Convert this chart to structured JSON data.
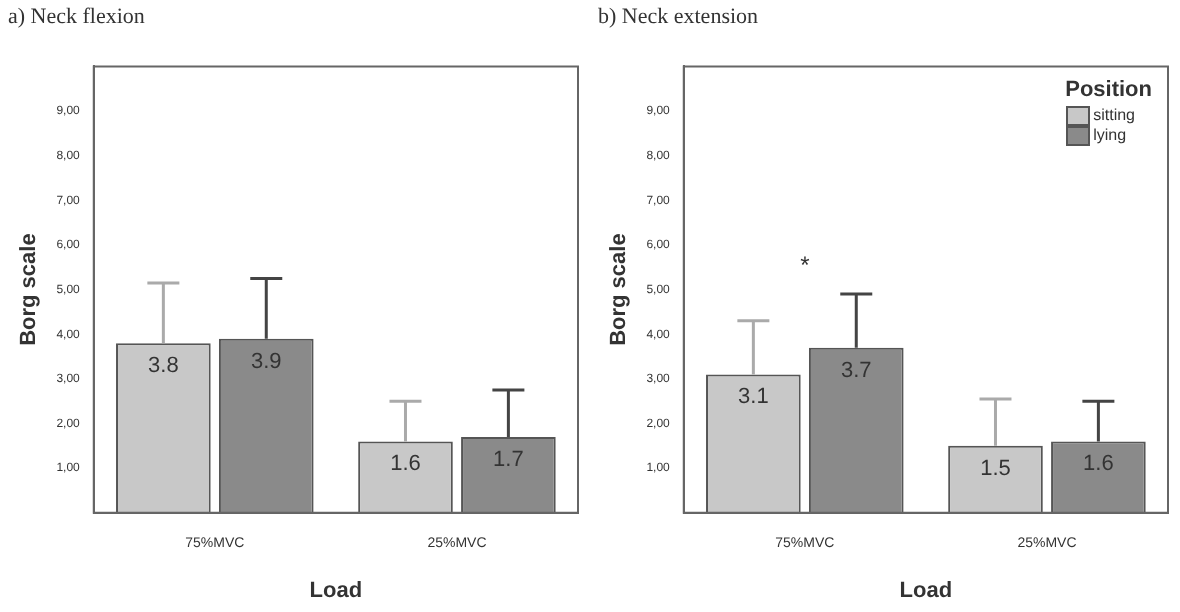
{
  "chart_data": [
    {
      "type": "bar",
      "title": "a) Neck flexion",
      "xlabel": "Load",
      "ylabel": "Borg scale",
      "categories": [
        "75%MVC",
        "25%MVC"
      ],
      "series": [
        {
          "color": "#c8c8c8",
          "values": [
            3.8,
            1.6
          ],
          "errors": [
            [
              3.8,
              5.15
            ],
            [
              1.6,
              2.5
            ]
          ]
        },
        {
          "color": "#8a8a8a",
          "values": [
            3.9,
            1.7
          ],
          "errors": [
            [
              3.9,
              5.25
            ],
            [
              1.7,
              2.75
            ]
          ]
        }
      ],
      "ylim": [
        0,
        10
      ],
      "yticks": [
        {
          "value": 1,
          "label": "1,00"
        },
        {
          "value": 2,
          "label": "2,00"
        },
        {
          "value": 3,
          "label": "3,00"
        },
        {
          "value": 4,
          "label": "4,00"
        },
        {
          "value": 5,
          "label": "5,00"
        },
        {
          "value": 6,
          "label": "6,00"
        },
        {
          "value": 7,
          "label": "7,00"
        },
        {
          "value": 8,
          "label": "8,00"
        },
        {
          "value": 9,
          "label": "9,00"
        }
      ],
      "data_labels": true,
      "grid": false,
      "legend": false
    },
    {
      "type": "bar",
      "title": "b) Neck extension",
      "xlabel": "Load",
      "ylabel": "Borg scale",
      "legend_title": "Position",
      "categories": [
        "75%MVC",
        "25%MVC"
      ],
      "series": [
        {
          "name": "sitting",
          "color": "#c8c8c8",
          "values": [
            3.1,
            1.5
          ],
          "errors": [
            [
              3.1,
              4.3
            ],
            [
              1.5,
              2.55
            ]
          ]
        },
        {
          "name": "lying",
          "color": "#8a8a8a",
          "values": [
            3.7,
            1.6
          ],
          "errors": [
            [
              3.7,
              4.9
            ],
            [
              1.6,
              2.5
            ]
          ]
        }
      ],
      "ylim": [
        0,
        10
      ],
      "yticks": [
        {
          "value": 1,
          "label": "1,00"
        },
        {
          "value": 2,
          "label": "2,00"
        },
        {
          "value": 3,
          "label": "3,00"
        },
        {
          "value": 4,
          "label": "4,00"
        },
        {
          "value": 5,
          "label": "5,00"
        },
        {
          "value": 6,
          "label": "6,00"
        },
        {
          "value": 7,
          "label": "7,00"
        },
        {
          "value": 8,
          "label": "8,00"
        },
        {
          "value": 9,
          "label": "9,00"
        }
      ],
      "annotations": [
        "*"
      ],
      "data_labels": true,
      "grid": false,
      "legend": "top right"
    }
  ]
}
